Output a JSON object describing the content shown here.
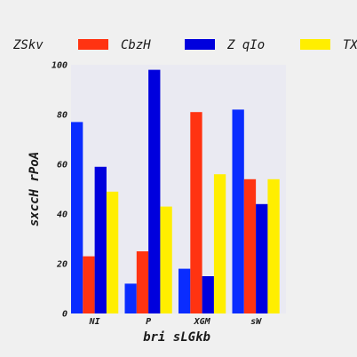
{
  "chart_data": {
    "type": "bar",
    "legend_title": "ZSkv",
    "categories": [
      "NI",
      "P",
      "XGM",
      "sW"
    ],
    "series": [
      {
        "name": "",
        "color": "#0a2cff",
        "values": [
          77,
          12,
          18,
          82
        ]
      },
      {
        "name": "CbzH",
        "color": "#ff3311",
        "values": [
          23,
          25,
          81,
          54
        ]
      },
      {
        "name": "Z qIo",
        "color": "#0000dd",
        "values": [
          59,
          98,
          15,
          44
        ]
      },
      {
        "name": "TX",
        "color": "#ffee00",
        "values": [
          49,
          43,
          56,
          54
        ]
      }
    ],
    "xlabel": "bri  sLGkb",
    "ylabel": "sxccH rPoA",
    "ylim": [
      0,
      100
    ],
    "yticks": [
      0,
      20,
      40,
      60,
      80,
      100
    ],
    "legend_position": "top",
    "grid": false,
    "background": "#eaeaf2"
  }
}
